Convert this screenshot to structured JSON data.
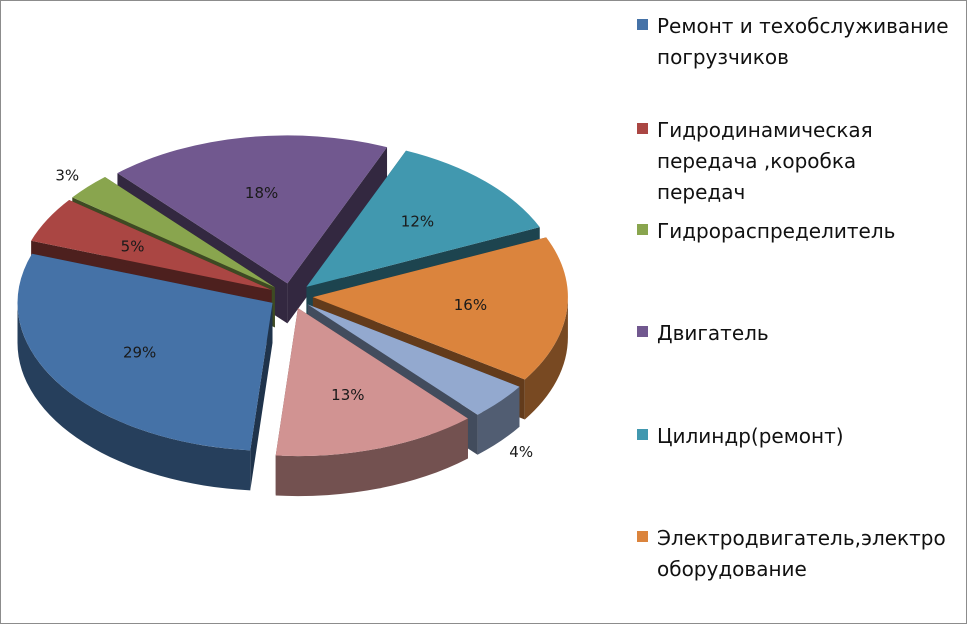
{
  "chart_data": {
    "type": "pie",
    "labels": [
      "Ремонт и техобслуживание погрузчиков",
      "Гидродинамическая передача ,коробка передач",
      "Гидрораспределитель",
      "Двигатель",
      "Цилиндр(ремонт)",
      "Электродвигатель,электро оборудование",
      "",
      ""
    ],
    "legend_display": [
      "Ремонт и техобслуживание\nпогрузчиков",
      "Гидродинамическая\nпередача ,коробка\nпередач",
      "Гидрораспределитель",
      "Двигатель",
      "Цилиндр(ремонт)",
      "Электродвигатель,электро\nоборудование"
    ],
    "values": [
      29,
      5,
      3,
      18,
      12,
      16,
      4,
      13
    ],
    "data_labels": [
      "29%",
      "5%",
      "3%",
      "18%",
      "12%",
      "16%",
      "4%",
      "13%"
    ],
    "colors": [
      "#4572a7",
      "#aa4643",
      "#89a54e",
      "#71588f",
      "#4198af",
      "#db843d",
      "#93a9cf",
      "#d19392"
    ],
    "style": "3d-exploded",
    "legend_position": "right"
  }
}
